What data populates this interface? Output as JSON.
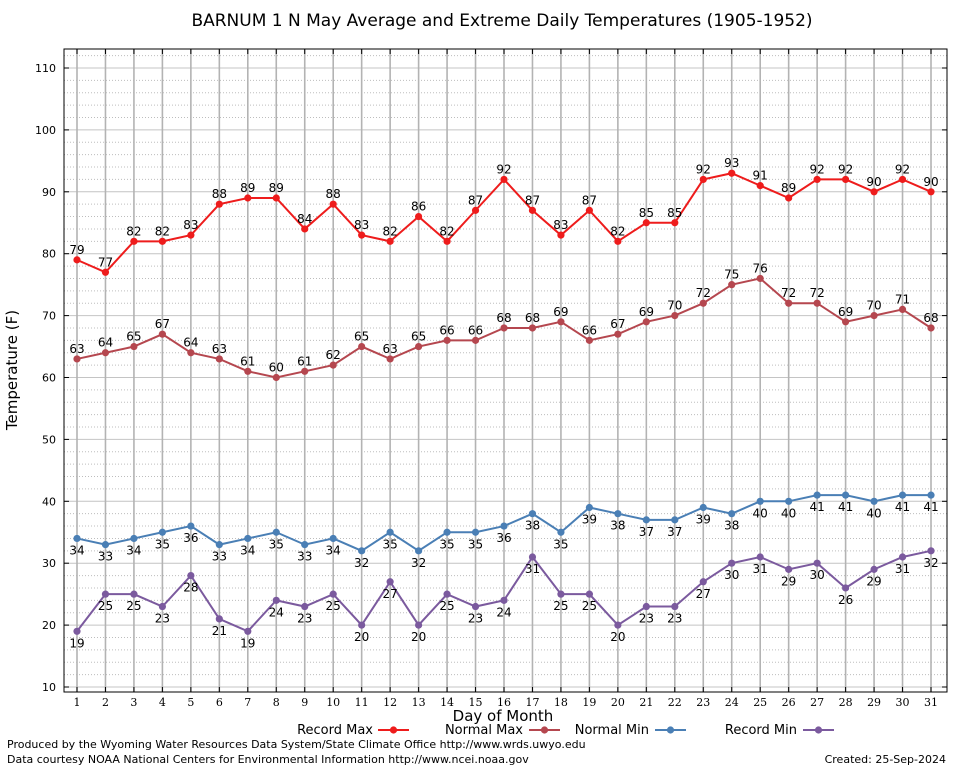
{
  "chart_data": {
    "type": "line",
    "title": "BARNUM 1 N May Average and Extreme Daily Temperatures (1905-1952)",
    "xlabel": "Day of Month",
    "ylabel": "Temperature (F)",
    "xlim": [
      1,
      31
    ],
    "ylim": [
      10,
      110
    ],
    "y_ticks": [
      10,
      20,
      30,
      40,
      50,
      60,
      70,
      80,
      90,
      100,
      110
    ],
    "x": [
      1,
      2,
      3,
      4,
      5,
      6,
      7,
      8,
      9,
      10,
      11,
      12,
      13,
      14,
      15,
      16,
      17,
      18,
      19,
      20,
      21,
      22,
      23,
      24,
      25,
      26,
      27,
      28,
      29,
      30,
      31
    ],
    "grid": true,
    "legend_position": "bottom",
    "data_labels": true,
    "series": [
      {
        "name": "Record Max",
        "color": "#ee1c1c",
        "label_position": "above",
        "values": [
          79,
          77,
          82,
          82,
          83,
          88,
          89,
          89,
          84,
          88,
          83,
          82,
          86,
          82,
          87,
          92,
          87,
          83,
          87,
          82,
          85,
          85,
          92,
          93,
          91,
          89,
          92,
          92,
          90,
          92,
          90
        ]
      },
      {
        "name": "Normal Max",
        "color": "#b5474f",
        "label_position": "above",
        "values": [
          63,
          64,
          65,
          67,
          64,
          63,
          61,
          60,
          61,
          62,
          65,
          63,
          65,
          66,
          66,
          68,
          68,
          69,
          66,
          67,
          69,
          70,
          72,
          75,
          76,
          72,
          72,
          69,
          70,
          71,
          68
        ]
      },
      {
        "name": "Normal Min",
        "color": "#4a7fb5",
        "label_position": "below",
        "values": [
          34,
          33,
          34,
          35,
          36,
          33,
          34,
          35,
          33,
          34,
          32,
          35,
          32,
          35,
          35,
          36,
          38,
          35,
          39,
          38,
          37,
          37,
          39,
          38,
          40,
          40,
          41,
          41,
          40,
          41,
          41
        ]
      },
      {
        "name": "Record Min",
        "color": "#7b5a9e",
        "label_position": "below",
        "values": [
          19,
          25,
          25,
          23,
          28,
          21,
          19,
          24,
          23,
          25,
          20,
          27,
          20,
          25,
          23,
          24,
          31,
          25,
          25,
          20,
          23,
          23,
          27,
          30,
          31,
          29,
          30,
          26,
          29,
          31,
          32
        ]
      }
    ]
  },
  "footer": {
    "produced_by": "Produced by the Wyoming Water Resources Data System/State Climate Office http://www.wrds.uwyo.edu",
    "data_courtesy": "Data courtesy NOAA National Centers for Environmental Information http://www.ncei.noaa.gov",
    "created": "Created:  25-Sep-2024"
  }
}
